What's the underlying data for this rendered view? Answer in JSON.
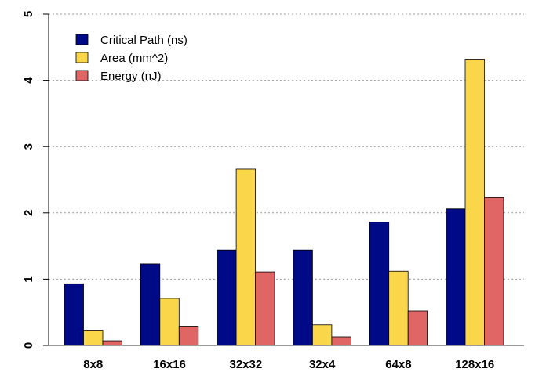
{
  "chart_data": {
    "type": "bar",
    "categories": [
      "8x8",
      "16x16",
      "32x32",
      "32x4",
      "64x8",
      "128x16"
    ],
    "series": [
      {
        "name": "Critical Path (ns)",
        "color": "#000a87",
        "values": [
          0.93,
          1.23,
          1.44,
          1.44,
          1.86,
          2.06
        ]
      },
      {
        "name": "Area (mm^2)",
        "color": "#fad74a",
        "values": [
          0.23,
          0.71,
          2.66,
          0.31,
          1.12,
          4.32
        ]
      },
      {
        "name": "Energy (nJ)",
        "color": "#e06666",
        "values": [
          0.07,
          0.29,
          1.11,
          0.13,
          0.52,
          2.23
        ]
      }
    ],
    "ylim": [
      0,
      5
    ],
    "yticks": [
      "0",
      "1",
      "2",
      "3",
      "4",
      "5"
    ],
    "grid": "horizontal-dotted",
    "legend_position": "top-left",
    "title": "",
    "xlabel": "",
    "ylabel": ""
  }
}
